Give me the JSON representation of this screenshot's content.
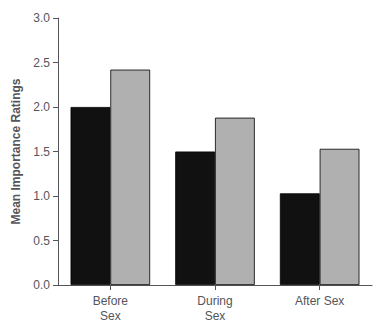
{
  "chart_data": {
    "type": "bar",
    "categories": [
      "Before\nSex",
      "During\nSex",
      "After Sex"
    ],
    "series": [
      {
        "color": "#111111",
        "values": [
          2.0,
          1.5,
          1.03
        ]
      },
      {
        "color": "#b0b0b0",
        "values": [
          2.42,
          1.88,
          1.53
        ]
      }
    ],
    "ylabel": "Mean Importance Ratings",
    "ylim": [
      0.0,
      3.0
    ],
    "yticks": [
      {
        "value": 0,
        "label": "0.0"
      },
      0.5,
      {
        "value": 1,
        "label": "1.0"
      },
      1.5,
      {
        "value": 2,
        "label": "2.0"
      },
      2.5,
      {
        "value": 3,
        "label": "3.0"
      }
    ],
    "grid": false
  }
}
